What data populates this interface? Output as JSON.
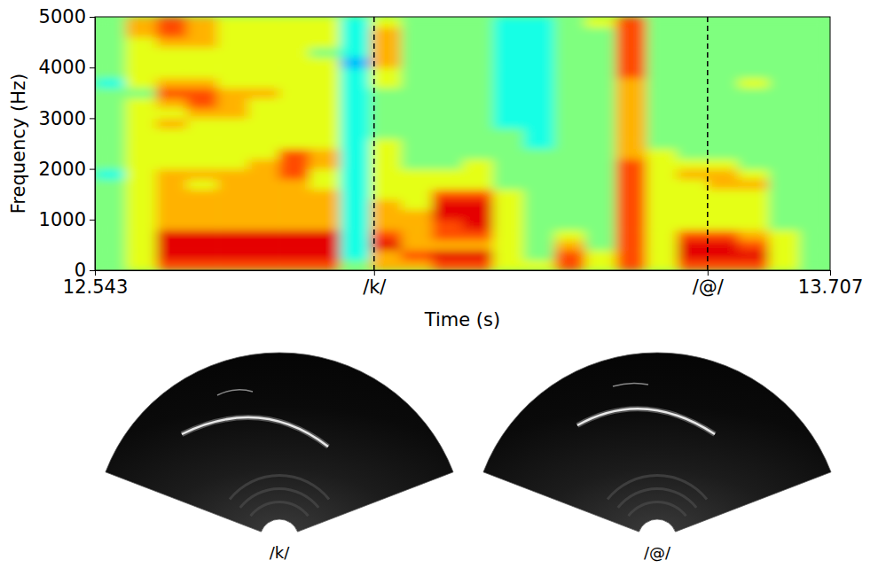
{
  "chart_data": {
    "type": "heatmap",
    "x_label": "Time (s)",
    "y_label": "Frequency (Hz)",
    "xlim": [
      12.543,
      13.707
    ],
    "ylim": [
      0,
      5000
    ],
    "xticks": [
      12.543,
      {
        "value": 12.985,
        "label": "/k/"
      },
      {
        "value": 13.513,
        "label": "/@/"
      },
      13.707
    ],
    "yticks": [
      0,
      1000,
      2000,
      3000,
      4000,
      5000
    ],
    "vlines": [
      12.985,
      13.513
    ],
    "zlim": [
      0,
      10
    ],
    "x_edges": [
      12.543,
      12.5915,
      12.64,
      12.6885,
      12.737,
      12.7855,
      12.834,
      12.8825,
      12.931,
      12.9795,
      13.028,
      13.0765,
      13.125,
      13.1735,
      13.222,
      13.2705,
      13.319,
      13.3675,
      13.416,
      13.4645,
      13.513,
      13.5615,
      13.61,
      13.6585,
      13.707
    ],
    "y_edges": [
      0,
      200,
      400,
      600,
      800,
      1000,
      1200,
      1400,
      1600,
      1800,
      2000,
      2200,
      2400,
      2600,
      2800,
      3000,
      3200,
      3400,
      3600,
      3800,
      4000,
      4200,
      4400,
      4600,
      4800,
      5000
    ],
    "cells": [
      [
        5,
        5,
        5,
        5,
        5,
        5,
        5,
        5,
        5,
        4,
        5,
        5,
        5,
        5,
        5,
        5,
        5,
        5,
        4,
        5,
        5,
        5,
        5,
        5,
        5
      ],
      [
        6,
        6,
        6,
        6,
        6,
        6,
        6,
        6,
        6,
        6,
        6,
        6,
        6,
        6,
        6,
        6,
        6,
        5,
        6,
        6,
        6,
        6,
        6,
        7,
        7
      ],
      [
        8,
        9,
        9,
        9,
        7,
        7,
        7,
        7,
        7,
        7,
        6,
        6,
        6,
        6,
        7,
        6,
        7,
        8,
        7,
        6,
        6,
        6,
        7,
        8,
        8
      ],
      [
        8,
        9,
        9,
        9,
        7,
        7,
        7,
        7,
        6,
        7,
        6,
        6,
        6,
        6,
        6,
        7,
        8,
        8,
        7,
        6,
        6,
        6,
        7,
        7,
        7
      ],
      [
        8,
        9,
        9,
        9,
        7,
        7,
        7,
        7,
        7,
        7,
        6,
        6,
        6,
        6,
        6,
        7,
        7,
        7,
        6,
        6,
        6,
        6,
        6,
        6,
        6
      ],
      [
        8,
        9,
        9,
        9,
        7,
        7,
        7,
        7,
        7,
        7,
        7,
        6,
        6,
        6,
        6,
        6,
        6,
        7,
        6,
        6,
        6,
        6,
        6,
        6,
        6
      ],
      [
        8,
        9,
        9,
        9,
        7,
        7,
        7,
        7,
        7,
        8,
        8,
        8,
        6,
        6,
        6,
        6,
        6,
        6,
        6,
        6,
        6,
        6,
        6,
        6,
        6
      ],
      [
        8,
        9,
        9,
        9,
        7,
        7,
        7,
        7,
        6,
        6,
        7,
        7,
        6,
        6,
        6,
        6,
        6,
        6,
        6,
        6,
        6,
        5,
        6,
        6,
        6
      ],
      [
        5,
        4,
        4,
        4,
        4,
        4,
        4,
        4,
        4,
        4,
        4,
        4,
        4,
        4,
        4,
        4,
        4,
        4,
        4,
        4,
        3,
        4,
        4,
        4,
        4
      ],
      [
        7,
        7,
        9,
        8,
        7,
        7,
        7,
        6,
        6,
        6,
        6,
        6,
        6,
        5,
        5,
        5,
        5,
        5,
        6,
        6,
        7,
        7,
        7,
        7,
        6
      ],
      [
        7,
        8,
        7,
        7,
        7,
        7,
        6,
        6,
        6,
        6,
        5,
        5,
        5,
        5,
        5,
        5,
        5,
        5,
        5,
        5,
        5,
        5,
        5,
        5,
        5
      ],
      [
        8,
        9,
        7,
        8,
        8,
        9,
        9,
        8,
        6,
        6,
        5,
        5,
        5,
        5,
        5,
        5,
        5,
        5,
        5,
        5,
        5,
        5,
        5,
        5,
        5
      ],
      [
        8,
        9,
        7,
        8,
        9,
        9,
        9,
        8,
        6,
        6,
        6,
        5,
        5,
        5,
        5,
        5,
        5,
        5,
        5,
        5,
        5,
        5,
        5,
        5,
        5
      ],
      [
        6,
        6,
        6,
        6,
        6,
        6,
        6,
        6,
        5,
        5,
        5,
        5,
        5,
        5,
        4,
        4,
        4,
        4,
        4,
        4,
        4,
        4,
        4,
        4,
        4
      ],
      [
        6,
        5,
        5,
        5,
        5,
        5,
        5,
        5,
        5,
        5,
        5,
        5,
        4,
        4,
        4,
        4,
        4,
        4,
        4,
        4,
        4,
        4,
        4,
        4,
        4
      ],
      [
        8,
        8,
        7,
        6,
        5,
        5,
        5,
        5,
        5,
        5,
        5,
        5,
        5,
        5,
        5,
        5,
        5,
        5,
        5,
        5,
        5,
        5,
        5,
        5,
        5
      ],
      [
        6,
        6,
        5,
        5,
        5,
        5,
        5,
        5,
        5,
        5,
        5,
        5,
        5,
        5,
        5,
        5,
        5,
        5,
        5,
        5,
        5,
        5,
        5,
        5,
        6
      ],
      [
        8,
        8,
        8,
        8,
        8,
        8,
        8,
        8,
        8,
        8,
        8,
        7,
        7,
        7,
        7,
        7,
        7,
        7,
        7,
        8,
        8,
        8,
        8,
        8,
        8
      ],
      [
        6,
        6,
        6,
        6,
        6,
        6,
        6,
        6,
        6,
        6,
        6,
        6,
        5,
        5,
        5,
        5,
        5,
        5,
        5,
        5,
        5,
        5,
        5,
        5,
        5
      ],
      [
        8,
        9,
        9,
        8,
        6,
        6,
        6,
        6,
        6,
        7,
        6,
        5,
        5,
        5,
        5,
        5,
        5,
        5,
        5,
        5,
        5,
        5,
        5,
        5,
        5
      ],
      [
        8,
        9,
        9,
        8,
        6,
        6,
        6,
        6,
        7,
        7,
        6,
        5,
        5,
        5,
        5,
        5,
        5,
        5,
        5,
        5,
        5,
        5,
        5,
        5,
        5
      ],
      [
        8,
        9,
        8,
        7,
        6,
        6,
        6,
        6,
        7,
        6,
        5,
        5,
        5,
        5,
        5,
        5,
        5,
        5,
        6,
        5,
        5,
        5,
        5,
        5,
        5
      ],
      [
        6,
        6,
        6,
        6,
        5,
        5,
        5,
        5,
        5,
        5,
        5,
        5,
        5,
        5,
        5,
        5,
        5,
        5,
        5,
        5,
        5,
        5,
        5,
        5,
        5
      ],
      [
        5,
        5,
        5,
        5,
        5,
        5,
        5,
        5,
        5,
        5,
        5,
        5,
        5,
        5,
        5,
        5,
        5,
        5,
        5,
        5,
        5,
        5,
        5,
        5,
        5
      ]
    ],
    "images": [
      {
        "caption": "/k/"
      },
      {
        "caption": "/@/"
      }
    ]
  }
}
